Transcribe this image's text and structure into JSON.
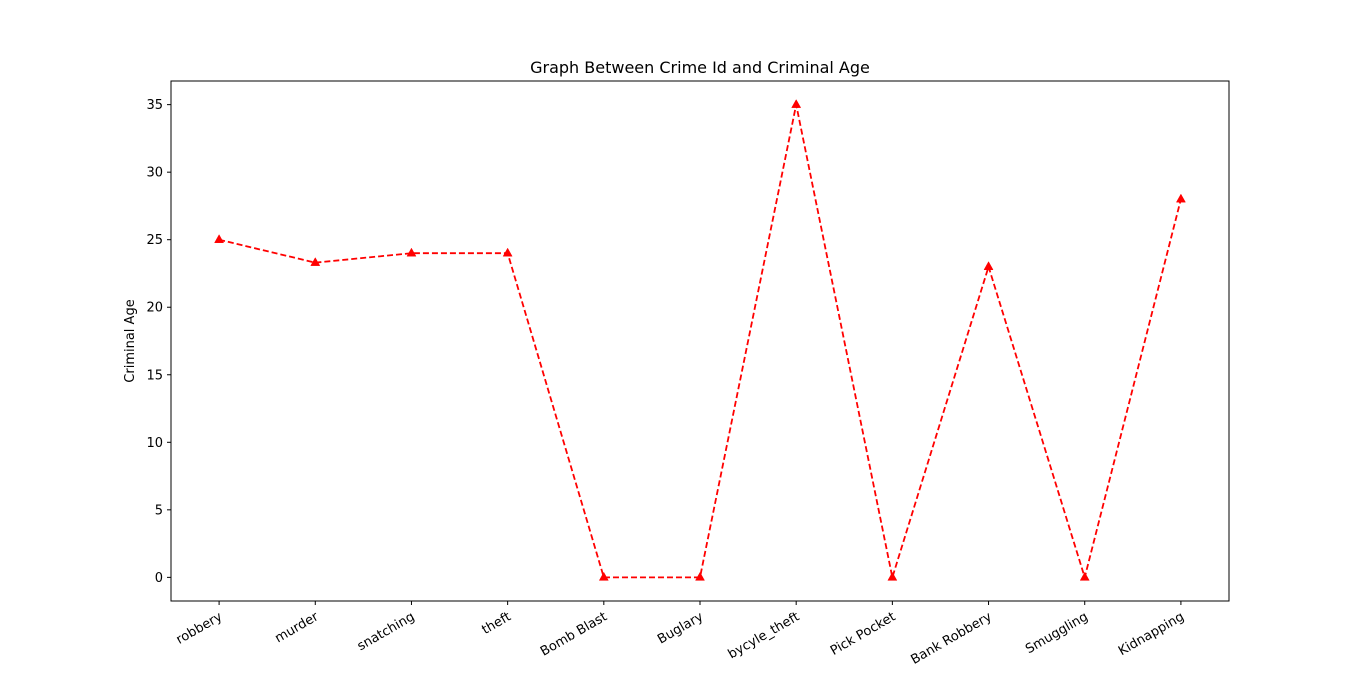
{
  "chart_data": {
    "type": "line",
    "title": "Graph Between Crime Id and Criminal Age",
    "xlabel": "",
    "ylabel": "Criminal Age",
    "categories": [
      "robbery",
      "murder",
      "snatching",
      "theft",
      "Bomb Blast",
      "Buglary",
      "bycyle_theft",
      "Pick Pocket",
      "Bank Robbery",
      "Smuggling",
      "Kidnapping"
    ],
    "series": [
      {
        "values": [
          25,
          23.3,
          24,
          24,
          0,
          0,
          35,
          0,
          23,
          0,
          28
        ],
        "color": "#ff0000",
        "line_style": "dashed",
        "marker": "triangle-up"
      }
    ],
    "ylim": [
      -1.75,
      36.75
    ],
    "yticks": [
      0,
      5,
      10,
      15,
      20,
      25,
      30,
      35
    ],
    "grid": false,
    "legend": "none"
  }
}
